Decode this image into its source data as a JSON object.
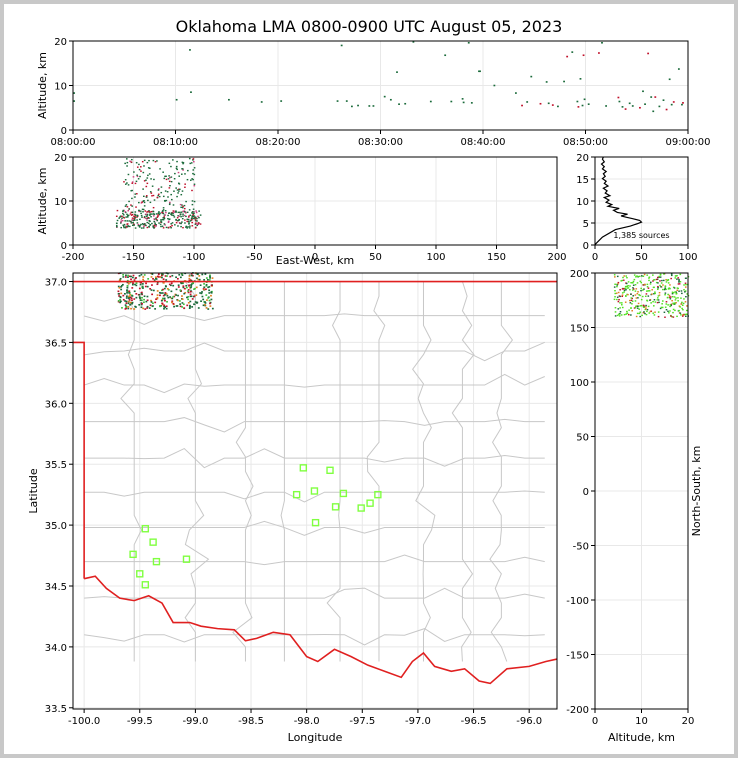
{
  "title": "Oklahoma LMA 0800-0900 UTC August 05, 2023",
  "colors": {
    "state_border": "#e02020",
    "county_lines": "#c8c8c8",
    "stations": "#80ff40",
    "grid": "#e8e8e8",
    "histogram": "#000000",
    "early_sources": "#1a6a3a",
    "late_sources": "#c0102a"
  },
  "chart_data": [
    {
      "id": "time_altitude",
      "type": "scatter",
      "ylabel": "Altitude, km",
      "ylim": [
        0,
        20
      ],
      "yticks": [
        0,
        10,
        20
      ],
      "xlim": [
        "08:00:00",
        "09:00:00"
      ],
      "xticks": [
        "08:00:00",
        "08:10:00",
        "08:20:00",
        "08:30:00",
        "08:40:00",
        "08:50:00",
        "09:00:00"
      ],
      "grid": true,
      "sources": [
        {
          "t": 10.1,
          "alt": 6.8
        },
        {
          "t": 11.4,
          "alt": 18.0
        },
        {
          "t": 11.5,
          "alt": 8.5
        },
        {
          "t": 15.2,
          "alt": 6.8
        },
        {
          "t": 18.4,
          "alt": 6.3
        },
        {
          "t": 20.3,
          "alt": 6.5
        },
        {
          "t": 25.8,
          "alt": 6.5
        },
        {
          "t": 26.2,
          "alt": 19.0
        },
        {
          "t": 26.7,
          "alt": 6.5
        },
        {
          "t": 27.2,
          "alt": 5.3
        },
        {
          "t": 27.8,
          "alt": 5.5
        },
        {
          "t": 28.9,
          "alt": 5.4
        },
        {
          "t": 29.3,
          "alt": 5.4
        },
        {
          "t": 30.4,
          "alt": 7.5
        },
        {
          "t": 31.0,
          "alt": 6.8
        },
        {
          "t": 31.6,
          "alt": 13.0
        },
        {
          "t": 31.8,
          "alt": 5.8
        },
        {
          "t": 32.4,
          "alt": 5.9
        },
        {
          "t": 33.2,
          "alt": 19.8
        },
        {
          "t": 34.9,
          "alt": 6.4
        },
        {
          "t": 36.3,
          "alt": 16.8
        },
        {
          "t": 36.9,
          "alt": 6.4
        },
        {
          "t": 38.0,
          "alt": 7.0
        },
        {
          "t": 38.1,
          "alt": 6.2
        },
        {
          "t": 38.6,
          "alt": 19.6
        },
        {
          "t": 38.9,
          "alt": 6.1
        },
        {
          "t": 39.6,
          "alt": 13.2
        },
        {
          "t": 39.7,
          "alt": 13.2
        },
        {
          "t": 41.1,
          "alt": 10.0
        },
        {
          "t": 43.2,
          "alt": 8.3
        },
        {
          "t": 43.8,
          "alt": 5.5
        },
        {
          "t": 44.3,
          "alt": 6.3
        },
        {
          "t": 44.7,
          "alt": 12.0
        },
        {
          "t": 45.6,
          "alt": 5.9
        },
        {
          "t": 46.2,
          "alt": 10.8
        },
        {
          "t": 46.4,
          "alt": 6.0
        },
        {
          "t": 46.8,
          "alt": 5.6
        },
        {
          "t": 47.3,
          "alt": 5.3
        },
        {
          "t": 47.9,
          "alt": 10.9
        },
        {
          "t": 48.2,
          "alt": 16.5
        },
        {
          "t": 48.7,
          "alt": 17.5
        },
        {
          "t": 49.2,
          "alt": 6.4
        },
        {
          "t": 49.3,
          "alt": 5.2
        },
        {
          "t": 49.5,
          "alt": 11.5
        },
        {
          "t": 49.7,
          "alt": 5.5
        },
        {
          "t": 49.8,
          "alt": 16.8
        },
        {
          "t": 49.9,
          "alt": 6.9
        },
        {
          "t": 50.3,
          "alt": 5.8
        },
        {
          "t": 51.3,
          "alt": 17.3
        },
        {
          "t": 51.6,
          "alt": 19.6
        },
        {
          "t": 52.0,
          "alt": 5.4
        },
        {
          "t": 53.2,
          "alt": 7.3
        },
        {
          "t": 53.3,
          "alt": 6.4
        },
        {
          "t": 53.6,
          "alt": 5.2
        },
        {
          "t": 53.9,
          "alt": 4.7
        },
        {
          "t": 54.3,
          "alt": 6.0
        },
        {
          "t": 54.6,
          "alt": 5.4
        },
        {
          "t": 55.3,
          "alt": 5.0
        },
        {
          "t": 55.6,
          "alt": 8.7
        },
        {
          "t": 55.8,
          "alt": 5.8
        },
        {
          "t": 56.1,
          "alt": 17.2
        },
        {
          "t": 56.4,
          "alt": 7.4
        },
        {
          "t": 56.6,
          "alt": 4.2
        },
        {
          "t": 56.8,
          "alt": 7.4
        },
        {
          "t": 57.2,
          "alt": 5.3
        },
        {
          "t": 57.6,
          "alt": 6.7
        },
        {
          "t": 57.9,
          "alt": 4.6
        },
        {
          "t": 58.2,
          "alt": 11.4
        },
        {
          "t": 58.4,
          "alt": 5.7
        },
        {
          "t": 58.6,
          "alt": 6.3
        },
        {
          "t": 59.1,
          "alt": 13.7
        },
        {
          "t": 59.4,
          "alt": 5.7
        },
        {
          "t": 59.5,
          "alt": 6.1
        },
        {
          "t": 0.1,
          "alt": 6.5
        },
        {
          "t": 0.1,
          "alt": 8.3
        }
      ]
    },
    {
      "id": "eastwest_altitude",
      "type": "scatter",
      "xlabel": "East-West, km",
      "ylabel": "Altitude, km",
      "xlim": [
        -200,
        200
      ],
      "xticks": [
        -200,
        -150,
        -100,
        -50,
        0,
        50,
        100,
        150,
        200
      ],
      "ylim": [
        0,
        20
      ],
      "yticks": [
        0,
        10,
        20
      ],
      "grid": true
    },
    {
      "id": "altitude_histogram",
      "type": "line",
      "xlim": [
        0,
        100
      ],
      "xticks": [
        0,
        50,
        100
      ],
      "ylim": [
        0,
        20
      ],
      "yticks": [
        0,
        5,
        10,
        15,
        20
      ],
      "annotation": "1,385 sources",
      "points": [
        [
          0,
          0.1
        ],
        [
          8,
          1.8
        ],
        [
          22,
          3.5
        ],
        [
          38,
          4.3
        ],
        [
          45,
          4.8
        ],
        [
          50,
          5.2
        ],
        [
          48,
          5.6
        ],
        [
          40,
          6.0
        ],
        [
          34,
          6.3
        ],
        [
          28,
          6.6
        ],
        [
          35,
          7.0
        ],
        [
          24,
          7.4
        ],
        [
          20,
          7.9
        ],
        [
          26,
          8.3
        ],
        [
          14,
          8.8
        ],
        [
          18,
          9.2
        ],
        [
          12,
          9.7
        ],
        [
          15,
          10.2
        ],
        [
          10,
          10.8
        ],
        [
          16,
          11.2
        ],
        [
          11,
          11.8
        ],
        [
          13,
          12.3
        ],
        [
          9,
          12.9
        ],
        [
          14,
          13.4
        ],
        [
          10,
          14.0
        ],
        [
          12,
          14.5
        ],
        [
          8,
          15.1
        ],
        [
          11,
          15.6
        ],
        [
          9,
          16.2
        ],
        [
          12,
          16.7
        ],
        [
          8,
          17.3
        ],
        [
          10,
          17.8
        ],
        [
          7,
          18.4
        ],
        [
          10,
          18.9
        ],
        [
          8,
          19.5
        ],
        [
          9,
          20.0
        ]
      ]
    },
    {
      "id": "plan_view",
      "type": "scatter",
      "xlabel": "Longitude",
      "ylabel": "Latitude",
      "xlim": [
        -100.1,
        -95.75
      ],
      "xticks": [
        -100.0,
        -99.5,
        -99.0,
        -98.5,
        -98.0,
        -97.5,
        -97.0,
        -96.5,
        -96.0
      ],
      "ylim": [
        33.49,
        37.07
      ],
      "yticks": [
        33.5,
        34.0,
        34.5,
        35.0,
        35.5,
        36.0,
        36.5,
        37.0
      ],
      "grid": true,
      "stations": [
        {
          "lon": -99.45,
          "lat": 34.97
        },
        {
          "lon": -99.38,
          "lat": 34.86
        },
        {
          "lon": -99.56,
          "lat": 34.76
        },
        {
          "lon": -99.35,
          "lat": 34.7
        },
        {
          "lon": -99.5,
          "lat": 34.6
        },
        {
          "lon": -99.45,
          "lat": 34.51
        },
        {
          "lon": -99.08,
          "lat": 34.72
        },
        {
          "lon": -98.03,
          "lat": 35.47
        },
        {
          "lon": -97.79,
          "lat": 35.45
        },
        {
          "lon": -97.93,
          "lat": 35.28
        },
        {
          "lon": -98.09,
          "lat": 35.25
        },
        {
          "lon": -97.67,
          "lat": 35.26
        },
        {
          "lon": -97.36,
          "lat": 35.25
        },
        {
          "lon": -97.43,
          "lat": 35.18
        },
        {
          "lon": -97.74,
          "lat": 35.15
        },
        {
          "lon": -97.51,
          "lat": 35.14
        },
        {
          "lon": -97.92,
          "lat": 35.02
        }
      ]
    },
    {
      "id": "altitude_northsouth",
      "type": "scatter",
      "xlabel": "Altitude, km",
      "ylabel": "North-South, km",
      "xlim": [
        0,
        20
      ],
      "xticks": [
        0,
        10,
        20
      ],
      "ylim": [
        -200,
        200
      ],
      "yticks": [
        -200,
        -150,
        -100,
        -50,
        0,
        50,
        100,
        150,
        200
      ],
      "grid": true
    }
  ]
}
